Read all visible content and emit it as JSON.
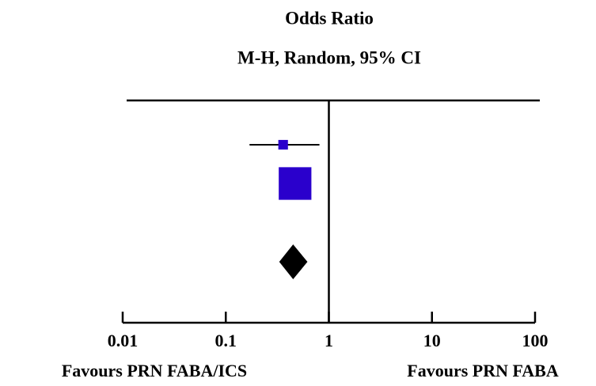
{
  "chart_data": {
    "type": "forest",
    "title": "Odds Ratio",
    "subtitle": "M-H, Random, 95% CI",
    "xlim": [
      0.01,
      100
    ],
    "xticks": [
      0.01,
      0.1,
      1,
      10,
      100
    ],
    "log_x": true,
    "x_labels": [
      "Favours PRN FABA/ICS",
      "Favours PRN FABA"
    ],
    "color": "#2a00cc",
    "studies": {
      "or": [
        0.36,
        0.47
      ],
      "ci_low": [
        0.17,
        0.35
      ],
      "ci_high": [
        0.81,
        0.63
      ],
      "weight": [
        8,
        92
      ]
    },
    "pooled": {
      "or": 0.45,
      "ci_low": 0.33,
      "ci_high": 0.62,
      "color": "#000000"
    }
  }
}
